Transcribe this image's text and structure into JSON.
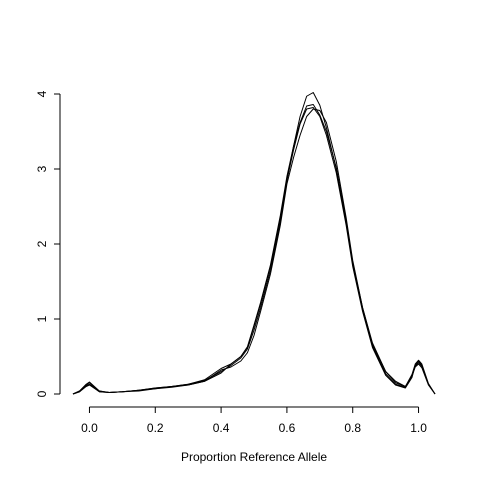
{
  "chart_data": {
    "type": "line",
    "title": "",
    "xlabel": "Proportion Reference Allele",
    "ylabel": "",
    "xlim": [
      -0.05,
      1.05
    ],
    "ylim": [
      0,
      4.08
    ],
    "x_ticks": [
      0.0,
      0.2,
      0.4,
      0.6,
      0.8,
      1.0
    ],
    "x_tick_labels": [
      "0.0",
      "0.2",
      "0.4",
      "0.6",
      "0.8",
      "1.0"
    ],
    "y_ticks": [
      0,
      1,
      2,
      3,
      4
    ],
    "y_tick_labels": [
      "0",
      "1",
      "2",
      "3",
      "4"
    ],
    "grid": false,
    "series": [
      {
        "x": [
          -0.05,
          -0.03,
          -0.01,
          0.0,
          0.01,
          0.03,
          0.06,
          0.1,
          0.15,
          0.2,
          0.25,
          0.3,
          0.35,
          0.4,
          0.43,
          0.46,
          0.48,
          0.5,
          0.52,
          0.55,
          0.58,
          0.6,
          0.62,
          0.64,
          0.66,
          0.68,
          0.7,
          0.72,
          0.75,
          0.78,
          0.8,
          0.83,
          0.86,
          0.9,
          0.93,
          0.96,
          0.98,
          0.99,
          1.0,
          1.01,
          1.03,
          1.05
        ],
        "values": [
          0.0,
          0.04,
          0.13,
          0.16,
          0.12,
          0.04,
          0.02,
          0.03,
          0.05,
          0.08,
          0.1,
          0.13,
          0.18,
          0.3,
          0.38,
          0.48,
          0.6,
          0.85,
          1.15,
          1.65,
          2.3,
          2.85,
          3.3,
          3.7,
          3.97,
          4.02,
          3.85,
          3.55,
          3.0,
          2.3,
          1.75,
          1.15,
          0.68,
          0.3,
          0.17,
          0.1,
          0.24,
          0.36,
          0.4,
          0.35,
          0.12,
          0.0
        ]
      },
      {
        "x": [
          -0.05,
          -0.03,
          -0.01,
          0.0,
          0.01,
          0.03,
          0.06,
          0.1,
          0.15,
          0.2,
          0.25,
          0.3,
          0.35,
          0.4,
          0.43,
          0.46,
          0.48,
          0.5,
          0.52,
          0.55,
          0.58,
          0.6,
          0.62,
          0.64,
          0.66,
          0.68,
          0.7,
          0.72,
          0.75,
          0.78,
          0.8,
          0.83,
          0.86,
          0.9,
          0.93,
          0.96,
          0.98,
          0.99,
          1.0,
          1.01,
          1.03,
          1.05
        ],
        "values": [
          0.0,
          0.03,
          0.11,
          0.13,
          0.1,
          0.03,
          0.02,
          0.03,
          0.05,
          0.07,
          0.1,
          0.12,
          0.17,
          0.28,
          0.4,
          0.5,
          0.62,
          0.9,
          1.2,
          1.7,
          2.35,
          2.85,
          3.25,
          3.6,
          3.8,
          3.82,
          3.7,
          3.45,
          2.95,
          2.25,
          1.7,
          1.1,
          0.62,
          0.25,
          0.12,
          0.08,
          0.22,
          0.38,
          0.44,
          0.38,
          0.13,
          0.0
        ]
      },
      {
        "x": [
          -0.05,
          -0.03,
          -0.01,
          0.0,
          0.01,
          0.03,
          0.06,
          0.1,
          0.15,
          0.2,
          0.25,
          0.3,
          0.35,
          0.4,
          0.43,
          0.46,
          0.48,
          0.5,
          0.52,
          0.55,
          0.58,
          0.6,
          0.62,
          0.64,
          0.66,
          0.68,
          0.7,
          0.72,
          0.75,
          0.78,
          0.8,
          0.83,
          0.86,
          0.9,
          0.93,
          0.96,
          0.98,
          0.99,
          1.0,
          1.01,
          1.03,
          1.05
        ],
        "values": [
          0.0,
          0.03,
          0.1,
          0.12,
          0.09,
          0.03,
          0.02,
          0.03,
          0.04,
          0.07,
          0.09,
          0.12,
          0.17,
          0.32,
          0.36,
          0.44,
          0.55,
          0.78,
          1.1,
          1.6,
          2.25,
          2.8,
          3.15,
          3.45,
          3.7,
          3.8,
          3.78,
          3.62,
          3.1,
          2.35,
          1.78,
          1.15,
          0.66,
          0.3,
          0.15,
          0.1,
          0.26,
          0.4,
          0.45,
          0.4,
          0.14,
          0.0
        ]
      },
      {
        "x": [
          -0.05,
          -0.03,
          -0.01,
          0.0,
          0.01,
          0.03,
          0.06,
          0.1,
          0.15,
          0.2,
          0.25,
          0.3,
          0.35,
          0.4,
          0.43,
          0.46,
          0.48,
          0.5,
          0.52,
          0.55,
          0.58,
          0.6,
          0.62,
          0.64,
          0.66,
          0.68,
          0.7,
          0.72,
          0.75,
          0.78,
          0.8,
          0.83,
          0.86,
          0.9,
          0.93,
          0.96,
          0.98,
          0.99,
          1.0,
          1.01,
          1.03,
          1.05
        ],
        "values": [
          0.0,
          0.04,
          0.12,
          0.15,
          0.11,
          0.04,
          0.02,
          0.03,
          0.05,
          0.08,
          0.1,
          0.13,
          0.19,
          0.34,
          0.4,
          0.5,
          0.63,
          0.92,
          1.22,
          1.72,
          2.38,
          2.9,
          3.3,
          3.62,
          3.84,
          3.86,
          3.72,
          3.5,
          3.02,
          2.3,
          1.74,
          1.12,
          0.64,
          0.27,
          0.13,
          0.09,
          0.24,
          0.37,
          0.42,
          0.37,
          0.13,
          0.0
        ]
      }
    ]
  }
}
